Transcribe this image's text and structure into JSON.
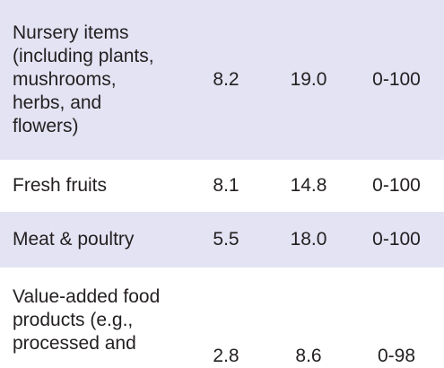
{
  "table": {
    "rows": [
      {
        "item": "Nursery items\n(including plants,\nmushrooms,\nherbs, and\nflowers)",
        "col1": "8.2",
        "col2": "19.0",
        "col3": "0-100"
      },
      {
        "item": "Fresh fruits",
        "col1": "8.1",
        "col2": "14.8",
        "col3": "0-100"
      },
      {
        "item": "Meat & poultry",
        "col1": "5.5",
        "col2": "18.0",
        "col3": "0-100"
      },
      {
        "item": "Value-added food\nproducts (e.g.,\nprocessed and",
        "col1": "2.8",
        "col2": "8.6",
        "col3": "0-98"
      }
    ]
  }
}
